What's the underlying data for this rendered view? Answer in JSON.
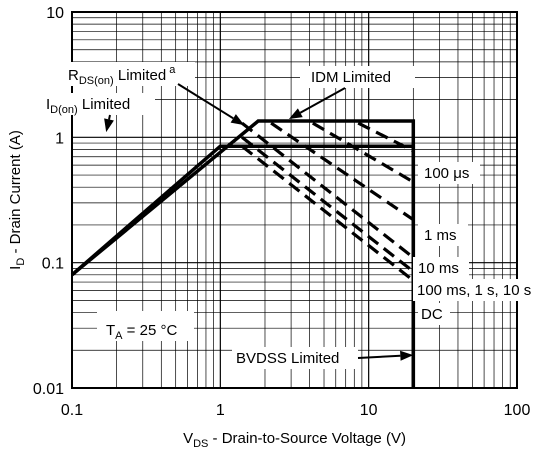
{
  "chart_data": {
    "type": "line",
    "x_scale": "log",
    "y_scale": "log",
    "xlim": [
      0.1,
      100
    ],
    "ylim": [
      0.01,
      10
    ],
    "grid": true,
    "x_ticks": [
      {
        "value": 0.1,
        "label": "0.1"
      },
      {
        "value": 1,
        "label": "1"
      },
      {
        "value": 10,
        "label": "10"
      },
      {
        "value": 100,
        "label": "100"
      }
    ],
    "y_ticks": [
      {
        "value": 0.01,
        "label": "0.01"
      },
      {
        "value": 0.1,
        "label": "0.1"
      },
      {
        "value": 1,
        "label": "1"
      },
      {
        "value": 10,
        "label": "10"
      }
    ],
    "xlabel": {
      "main": "V",
      "sub": "DS",
      "rest": " - Drain-to-Source Voltage (V)"
    },
    "ylabel": {
      "main": "I",
      "sub": "D",
      "rest": " - Drain Current (A)"
    },
    "series": [
      {
        "style": "solid",
        "x": [
          0.1,
          1.0,
          20,
          20
        ],
        "y": [
          0.08,
          0.85,
          0.85,
          0.01
        ]
      },
      {
        "style": "solid",
        "x": [
          0.1,
          1.8,
          20,
          20
        ],
        "y": [
          0.08,
          1.35,
          1.35,
          0.01
        ]
      },
      {
        "style": "dashed",
        "x": [
          1.4,
          20
        ],
        "y": [
          1.3,
          0.11
        ]
      },
      {
        "style": "dashed",
        "x": [
          1.4,
          20
        ],
        "y": [
          1.0,
          0.085
        ]
      },
      {
        "style": "dashed",
        "x": [
          1.4,
          20
        ],
        "y": [
          0.85,
          0.072
        ]
      },
      {
        "style": "dashed",
        "x": [
          2.2,
          20
        ],
        "y": [
          1.3,
          0.22
        ]
      },
      {
        "style": "dashed",
        "x": [
          4.2,
          20
        ],
        "y": [
          1.3,
          0.44
        ]
      },
      {
        "style": "dashed",
        "x": [
          8.5,
          20
        ],
        "y": [
          1.3,
          0.78
        ]
      }
    ],
    "annotations": [
      {
        "id": "rds",
        "main": "R",
        "sub": "DS(on)",
        "rest": " Limited",
        "sup": "a",
        "arrow": {
          "x": 1.45,
          "y": 1.25
        }
      },
      {
        "id": "idm",
        "text": "IDM Limited",
        "arrow": {
          "x": 2.9,
          "y": 1.4
        }
      },
      {
        "id": "idon",
        "main": "I",
        "sub": "D(on)",
        "rest": " Limited",
        "arrow": {
          "x": 0.17,
          "y": 1.1
        }
      },
      {
        "id": "bvdss",
        "text": "BVDSS Limited",
        "arrow": {
          "x": 20,
          "y": 0.017
        }
      },
      {
        "id": "ta",
        "main": "T",
        "sub": "A",
        "rest": " = 25 °C"
      },
      {
        "id": "lbl-100us",
        "text": "100 μs"
      },
      {
        "id": "lbl-1ms",
        "text": "1 ms"
      },
      {
        "id": "lbl-10ms",
        "text": "10 ms"
      },
      {
        "id": "lbl-100ms",
        "text": "100 ms, 1 s, 10 s"
      },
      {
        "id": "lbl-dc",
        "text": "DC"
      }
    ]
  }
}
